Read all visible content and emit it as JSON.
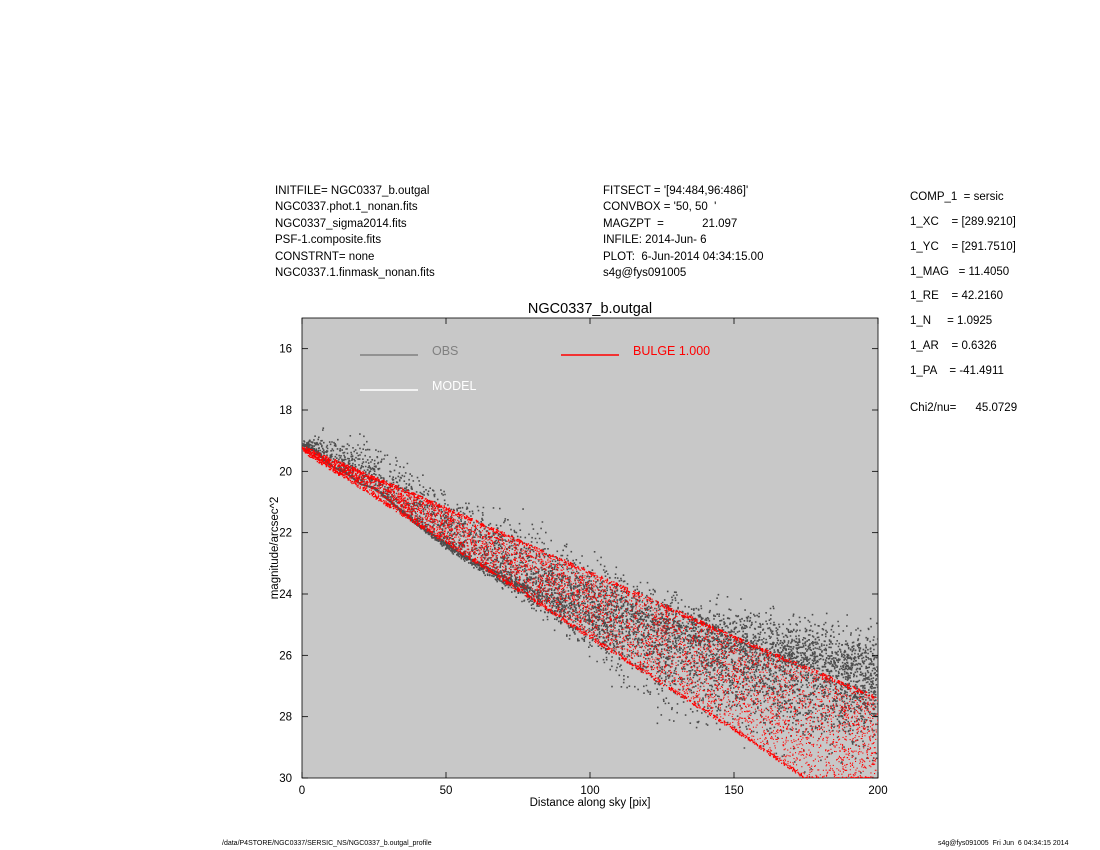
{
  "header": {
    "left": [
      "INITFILE= NGC0337_b.outgal",
      "NGC0337.phot.1_nonan.fits",
      "NGC0337_sigma2014.fits",
      "PSF-1.composite.fits",
      "CONSTRNT= none",
      "NGC0337.1.finmask_nonan.fits"
    ],
    "middle": [
      "FITSECT = '[94:484,96:486]'",
      "CONVBOX = '50, 50  '",
      "MAGZPT  =            21.097",
      "INFILE: 2014-Jun- 6",
      "PLOT:  6-Jun-2014 04:34:15.00",
      "s4g@fys091005"
    ]
  },
  "params": [
    "COMP_1  = sersic",
    "1_XC    = [289.9210]",
    "1_YC    = [291.7510]",
    "1_MAG   = 11.4050",
    "1_RE    = 42.2160",
    "1_N     = 1.0925",
    "1_AR    = 0.6326",
    "1_PA    = -41.4911"
  ],
  "chi2": "Chi2/nu=      45.0729",
  "footer": {
    "left": "/data/P4STORE/NGC0337/SERSIC_NS/NGC0337_b.outgal_profile",
    "right": "s4g@fys091005  Fri Jun  6 04:34:15 2014"
  },
  "colors": {
    "obs": "#4d4d4d",
    "obs_legend": "#808080",
    "model": "#ffffff",
    "bulge": "#ff0000",
    "plot_bg": "#c8c8c8"
  },
  "chart_data": {
    "type": "scatter",
    "title": "NGC0337_b.outgal",
    "xlabel": "Distance along sky [pix]",
    "ylabel": "magnitude/arcsec^2",
    "xlim": [
      0,
      200
    ],
    "ylim": [
      30,
      15
    ],
    "y_inverted": true,
    "x_ticks": [
      0,
      50,
      100,
      150,
      200
    ],
    "y_ticks": [
      16,
      18,
      20,
      22,
      24,
      26,
      28,
      30
    ],
    "grid": false,
    "legend": [
      {
        "label": "OBS",
        "color": "#808080"
      },
      {
        "label": "MODEL",
        "color": "#ffffff"
      },
      {
        "label": "BULGE  1.000",
        "color": "#ff0000"
      }
    ],
    "series": [
      {
        "name": "OBS",
        "points": [
          [
            0,
            19.1
          ],
          [
            5,
            19.3
          ],
          [
            10,
            19.8
          ],
          [
            15,
            20.0
          ],
          [
            20,
            20.4
          ],
          [
            25,
            20.5
          ],
          [
            30,
            20.9
          ],
          [
            40,
            21.7
          ],
          [
            50,
            22.3
          ],
          [
            60,
            22.9
          ],
          [
            75,
            23.6
          ],
          [
            100,
            24.5
          ],
          [
            125,
            25.3
          ],
          [
            150,
            25.9
          ],
          [
            175,
            26.4
          ],
          [
            200,
            26.9
          ]
        ],
        "band_upper_min": [
          [
            0,
            19.0
          ],
          [
            8,
            18.4
          ],
          [
            25,
            18.4
          ],
          [
            50,
            20.2
          ],
          [
            75,
            21.0
          ],
          [
            125,
            23.6
          ],
          [
            200,
            24.5
          ]
        ],
        "band_lower_max": [
          [
            0,
            19.3
          ],
          [
            25,
            20.6
          ],
          [
            50,
            22.6
          ],
          [
            75,
            24.2
          ],
          [
            100,
            26.6
          ],
          [
            125,
            28.6
          ],
          [
            175,
            30.0
          ],
          [
            200,
            30.0
          ]
        ]
      },
      {
        "name": "BULGE  1.000",
        "upper_edge": [
          [
            0,
            19.2
          ],
          [
            50,
            21.2
          ],
          [
            100,
            23.3
          ],
          [
            150,
            25.4
          ],
          [
            200,
            27.4
          ]
        ],
        "lower_edge": [
          [
            0,
            19.3
          ],
          [
            50,
            22.3
          ],
          [
            100,
            25.4
          ],
          [
            150,
            28.4
          ],
          [
            175,
            30.0
          ],
          [
            200,
            30.0
          ]
        ]
      }
    ]
  }
}
